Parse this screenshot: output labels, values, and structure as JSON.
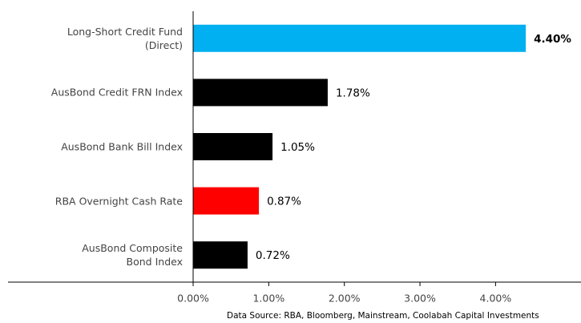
{
  "chart_data": {
    "type": "bar",
    "orientation": "horizontal",
    "categories": [
      "Long-Short Credit Fund\n(Direct)",
      "AusBond Credit FRN Index",
      "AusBond Bank Bill Index",
      "RBA Overnight Cash Rate",
      "AusBond Composite\nBond Index"
    ],
    "values": [
      4.4,
      1.78,
      1.05,
      0.87,
      0.72
    ],
    "value_labels": [
      "4.40%",
      "1.78%",
      "1.05%",
      "0.87%",
      "0.72%"
    ],
    "colors": [
      "#00b0f0",
      "#000000",
      "#000000",
      "#ff0000",
      "#000000"
    ],
    "xlim": [
      0,
      5.13
    ],
    "xticks": [
      {
        "value": 0,
        "label": "0.00%"
      },
      {
        "value": 1,
        "label": "1.00%"
      },
      {
        "value": 2,
        "label": "2.00%"
      },
      {
        "value": 3,
        "label": "3.00%"
      },
      {
        "value": 4,
        "label": "4.00%"
      }
    ],
    "grid": false,
    "source": "Data Source: RBA, Bloomberg, Mainstream, Coolabah Capital Investments"
  }
}
